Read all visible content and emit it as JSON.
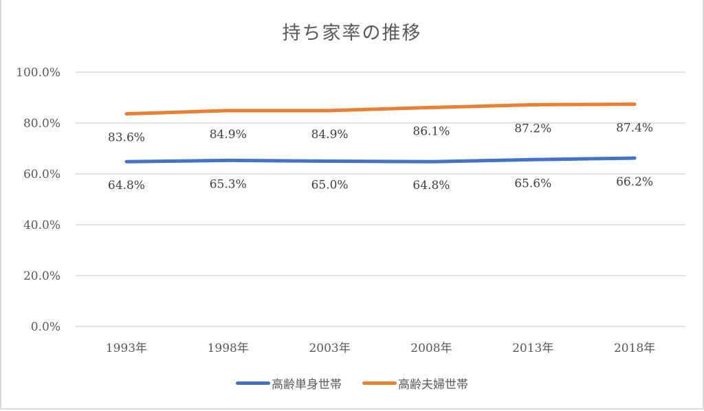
{
  "chart_data": {
    "type": "line",
    "title": "持ち家率の推移",
    "xlabel": "",
    "ylabel": "",
    "categories": [
      "1993年",
      "1998年",
      "2003年",
      "2008年",
      "2013年",
      "2018年"
    ],
    "series": [
      {
        "name": "高齢単身世帯",
        "color": "#4472c4",
        "values": [
          64.8,
          65.3,
          65.0,
          64.8,
          65.6,
          66.2
        ],
        "labels": [
          "64.8%",
          "65.3%",
          "65.0%",
          "64.8%",
          "65.6%",
          "66.2%"
        ]
      },
      {
        "name": "高齢夫婦世帯",
        "color": "#ed7d31",
        "values": [
          83.6,
          84.9,
          84.9,
          86.1,
          87.2,
          87.4
        ],
        "labels": [
          "83.6%",
          "84.9%",
          "84.9%",
          "86.1%",
          "87.2%",
          "87.4%"
        ]
      }
    ],
    "yticks": [
      "0.0%",
      "20.0%",
      "40.0%",
      "60.0%",
      "80.0%",
      "100.0%"
    ],
    "ylim": [
      0,
      100
    ],
    "grid": true,
    "legend_position": "bottom",
    "data_labels": true
  }
}
